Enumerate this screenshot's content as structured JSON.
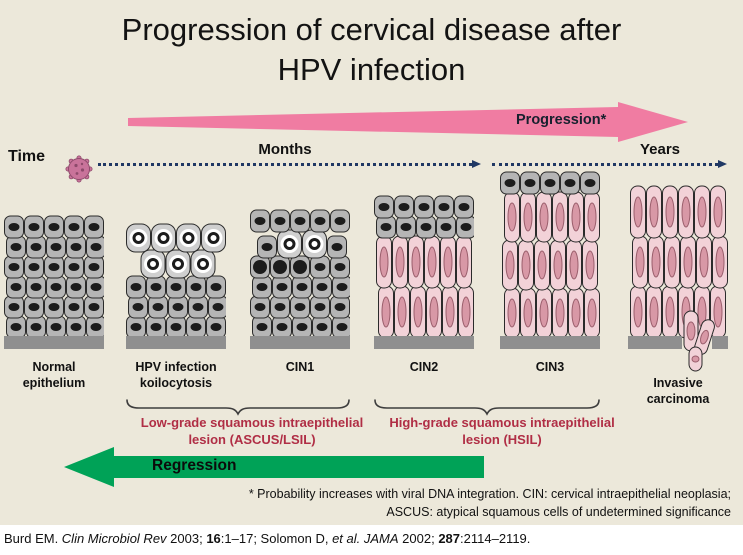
{
  "colors": {
    "background": "#ECE8DA",
    "progression_pink": "#F07CA2",
    "regression_green": "#00A257",
    "timeline_navy": "#203864",
    "lesion_red": "#B02E45",
    "cell_gray": "#B5B5B5",
    "cell_gray_light": "#CFCFCF",
    "cell_pink": "#F2D2D8",
    "nucleus_dark": "#1C1C1C",
    "nucleus_pink": "#D898A6",
    "membrane_gray": "#8F8F8F",
    "virus_pink": "#C9739A"
  },
  "title": {
    "line1": "Progression of cervical disease after",
    "line2": "HPV infection"
  },
  "progression": {
    "label": "Progression*"
  },
  "timeline": {
    "time_label": "Time",
    "months_label": "Months",
    "years_label": "Years"
  },
  "stages": [
    {
      "id": "normal-epithelium",
      "label_lines": [
        "Normal",
        "epithelium"
      ],
      "cells": [
        "nnnnn",
        "nnnnn",
        "nnnnn",
        "nnnnn",
        "nnnnn",
        "nnnnn"
      ]
    },
    {
      "id": "hpv-koilocytosis",
      "label_lines": [
        "HPV infection",
        "koilocytosis"
      ],
      "cells": [
        "kkkk",
        "kkk",
        "nnnnn",
        "nnnnn",
        "nnnnn"
      ]
    },
    {
      "id": "cin1",
      "label_lines": [
        "CIN1"
      ],
      "cells": [
        "nnnnn",
        "nkkn",
        "dddnn",
        "nnnnn",
        "nnnnn",
        "nnnnn"
      ]
    },
    {
      "id": "cin2",
      "label_lines": [
        "CIN2"
      ],
      "cells": [
        "nnnnn",
        "nnnnn",
        "pppppp",
        "pppppp"
      ],
      "pink_h": 52
    },
    {
      "id": "cin3",
      "label_lines": [
        "CIN3"
      ],
      "cells": [
        "nnnnn",
        "pppppp",
        "pppppp",
        "pppppp"
      ],
      "pink_h": 50
    },
    {
      "id": "invasive-carcinoma",
      "label_lines": [
        "Invasive",
        "carcinoma"
      ],
      "cells": [
        "pppppp",
        "pppppp",
        "pppppp"
      ],
      "pink_h": 52,
      "invasion": true
    }
  ],
  "cell_legend": {
    "n": "normal-cell",
    "k": "koilocyte",
    "d": "dysplastic-dark-cell",
    "p": "dysplastic-columnar-cell"
  },
  "groups": [
    {
      "id": "low-grade",
      "lines": [
        "Low-grade squamous intraepithelial",
        "lesion (ASCUS/LSIL)"
      ]
    },
    {
      "id": "high-grade",
      "lines": [
        "High-grade squamous intraepithelial",
        "lesion (HSIL)"
      ]
    }
  ],
  "regression": {
    "label": "Regression"
  },
  "footnote": {
    "line1": "* Probability increases with viral DNA integration. CIN: cervical intraepithelial neoplasia;",
    "line2": "ASCUS: atypical squamous cells of undetermined significance"
  },
  "citation": {
    "segments": [
      {
        "text": "Burd EM. ",
        "style": "plain"
      },
      {
        "text": "Clin Microbiol Rev",
        "style": "italic"
      },
      {
        "text": " 2003; ",
        "style": "plain"
      },
      {
        "text": "16",
        "style": "bold"
      },
      {
        "text": ":1–17; Solomon D, ",
        "style": "plain"
      },
      {
        "text": "et al.",
        "style": "italic"
      },
      {
        "text": " ",
        "style": "plain"
      },
      {
        "text": "JAMA",
        "style": "italic"
      },
      {
        "text": " 2002; ",
        "style": "plain"
      },
      {
        "text": "287",
        "style": "bold"
      },
      {
        "text": ":2114–2119.",
        "style": "plain"
      }
    ]
  }
}
